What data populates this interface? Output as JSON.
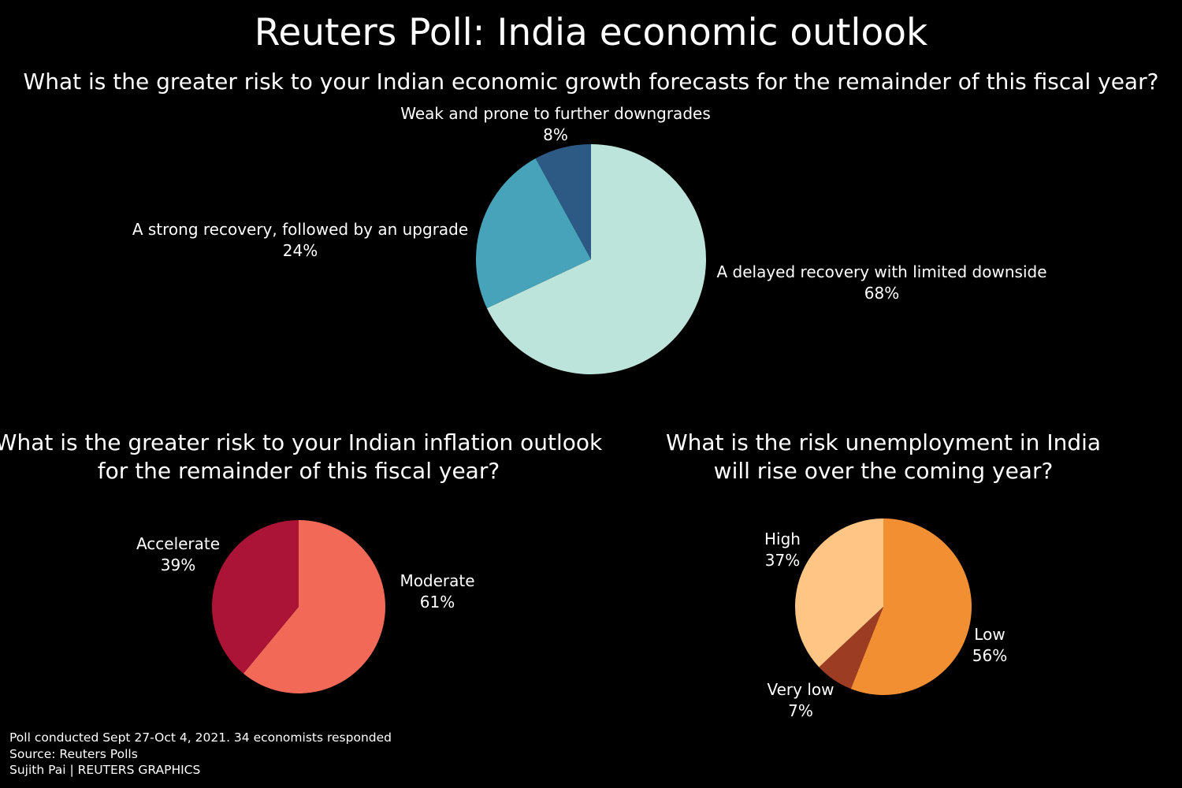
{
  "title": "Reuters Poll: India economic outlook",
  "chart_data": [
    {
      "type": "pie",
      "title": "What is the greater risk to your Indian economic growth forecasts for the remainder of this fiscal year?",
      "slices": [
        {
          "label": "A delayed recovery with limited downside",
          "value": 68,
          "value_label": "68%",
          "color": "#bde4da"
        },
        {
          "label": "A strong recovery, followed by an upgrade",
          "value": 24,
          "value_label": "24%",
          "color": "#47a3b9"
        },
        {
          "label": "Weak and prone to further downgrades",
          "value": 8,
          "value_label": "8%",
          "color": "#2d5985"
        }
      ]
    },
    {
      "type": "pie",
      "title_lines": [
        "What is the greater risk to your Indian inflation outlook",
        "for the remainder of this fiscal year?"
      ],
      "slices": [
        {
          "label": "Moderate",
          "value": 61,
          "value_label": "61%",
          "color": "#f26a57"
        },
        {
          "label": "Accelerate",
          "value": 39,
          "value_label": "39%",
          "color": "#ab1337"
        }
      ]
    },
    {
      "type": "pie",
      "title_lines": [
        "What is the risk unemployment in India",
        "will rise over the coming year?"
      ],
      "slices": [
        {
          "label": "Low",
          "value": 56,
          "value_label": "56%",
          "color": "#f28f33"
        },
        {
          "label": "Very low",
          "value": 7,
          "value_label": "7%",
          "color": "#9c3c22"
        },
        {
          "label": "High",
          "value": 37,
          "value_label": "37%",
          "color": "#fec584"
        }
      ]
    }
  ],
  "footer": [
    "Poll conducted Sept 27-Oct 4, 2021. 34 economists responded",
    "Source: Reuters Polls",
    "Sujith Pai | REUTERS GRAPHICS"
  ]
}
